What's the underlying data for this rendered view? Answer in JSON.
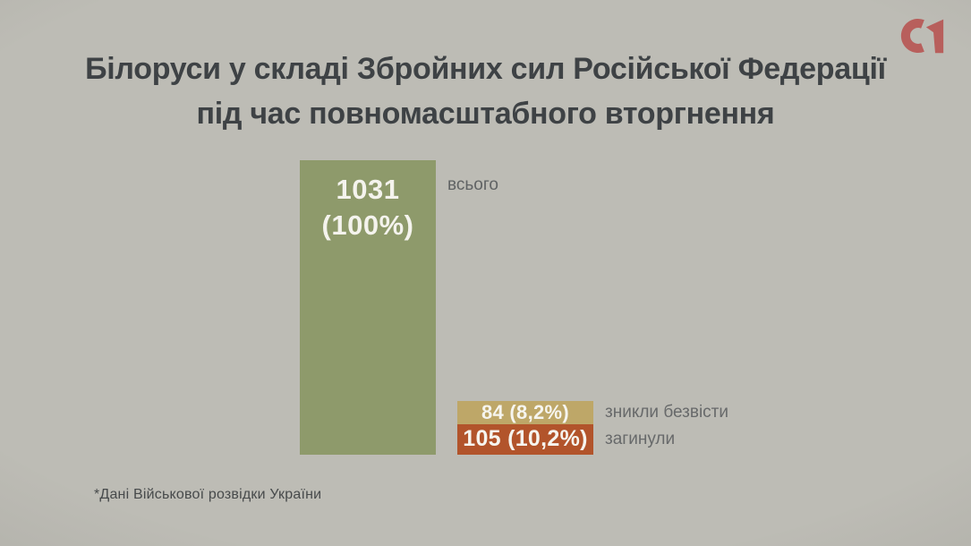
{
  "page": {
    "background_color": "#bdbcb5"
  },
  "header": {
    "title_line1": "Білоруси у складі Збройних сил Російської Федерації",
    "title_line2": "під час повномасштабного вторгнення",
    "title_color": "#3e4245"
  },
  "logo": {
    "name": "C1",
    "color": "#b85f5c"
  },
  "chart_data": {
    "type": "bar",
    "title": "Білоруси у складі Збройних сил Російської Федерації під час повномасштабного вторгнення",
    "categories": [
      "всього",
      "зникли безвісти",
      "загинули"
    ],
    "values": [
      1031,
      84,
      105
    ],
    "percentages": [
      100,
      8.2,
      10.2
    ],
    "bar_value_labels": [
      "1031 (100%)",
      "84 (8,2%)",
      "105 (10,2%)"
    ],
    "colors": [
      "#8e9a6b",
      "#bea768",
      "#b2542b"
    ],
    "ylim": [
      0,
      1031
    ],
    "grid": false,
    "legend_position": "right-of-bars",
    "layout_note": "single total column at left; missing+killed stacked column at right, bottom-aligned, heights proportional to values"
  },
  "bars": {
    "total": {
      "value_line": "1031",
      "percent_line": "(100%)",
      "label": "всього",
      "color": "#8e9a6b"
    },
    "missing": {
      "text": "84 (8,2%)",
      "label": "зникли безвісти",
      "color": "#bea768"
    },
    "killed": {
      "text": "105 (10,2%)",
      "label": "загинули",
      "color": "#b2542b"
    }
  },
  "footnote": {
    "text": "*Дані Військової розвідки України"
  }
}
